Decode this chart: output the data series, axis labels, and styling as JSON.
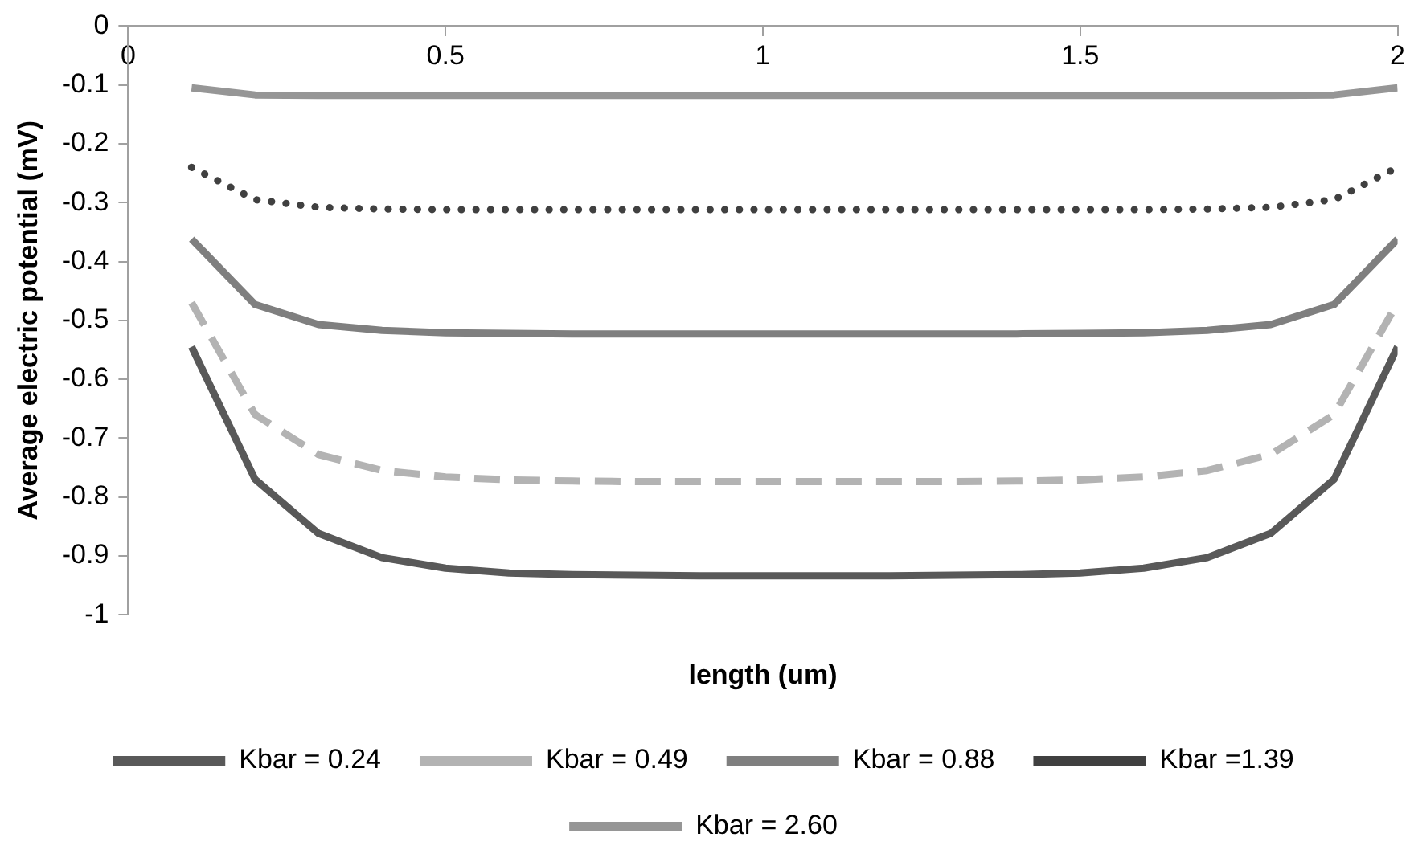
{
  "chart_data": {
    "type": "line",
    "xlabel": "length (um)",
    "ylabel": "Average electric potential (mV)",
    "x": [
      0.1,
      0.2,
      0.3,
      0.4,
      0.5,
      0.6,
      0.7,
      0.8,
      0.9,
      1.0,
      1.1,
      1.2,
      1.3,
      1.4,
      1.5,
      1.6,
      1.7,
      1.8,
      1.9,
      2.0
    ],
    "xlim": [
      0,
      2
    ],
    "xticks": [
      0,
      0.5,
      1,
      1.5,
      2
    ],
    "ylim": [
      -1,
      0
    ],
    "yticks": [
      -1,
      -0.9,
      -0.8,
      -0.7,
      -0.6,
      -0.5,
      -0.4,
      -0.3,
      -0.2,
      -0.1,
      0
    ],
    "grid": false,
    "legend": "bottom",
    "marker": "none",
    "series": [
      {
        "name": "Kbar = 0.24",
        "color": "#595959",
        "line_style": "solid",
        "values": [
          -0.545,
          -0.77,
          -0.862,
          -0.903,
          -0.921,
          -0.929,
          -0.932,
          -0.933,
          -0.934,
          -0.934,
          -0.934,
          -0.934,
          -0.933,
          -0.932,
          -0.929,
          -0.921,
          -0.903,
          -0.862,
          -0.77,
          -0.545
        ]
      },
      {
        "name": "Kbar = 0.49",
        "color": "#b3b3b3",
        "line_style": "dashed",
        "values": [
          -0.47,
          -0.66,
          -0.728,
          -0.755,
          -0.766,
          -0.771,
          -0.773,
          -0.774,
          -0.774,
          -0.774,
          -0.774,
          -0.774,
          -0.774,
          -0.773,
          -0.771,
          -0.766,
          -0.755,
          -0.728,
          -0.66,
          -0.47
        ]
      },
      {
        "name": "Kbar = 0.88",
        "color": "#7f7f7f",
        "line_style": "solid",
        "values": [
          -0.362,
          -0.473,
          -0.507,
          -0.517,
          -0.521,
          -0.522,
          -0.523,
          -0.523,
          -0.523,
          -0.523,
          -0.523,
          -0.523,
          -0.523,
          -0.523,
          -0.522,
          -0.521,
          -0.517,
          -0.507,
          -0.473,
          -0.362
        ]
      },
      {
        "name": "Kbar =1.39",
        "color": "#404040",
        "line_style": "dotted",
        "values": [
          -0.24,
          -0.295,
          -0.308,
          -0.311,
          -0.312,
          -0.312,
          -0.312,
          -0.312,
          -0.312,
          -0.312,
          -0.312,
          -0.312,
          -0.312,
          -0.312,
          -0.312,
          -0.312,
          -0.311,
          -0.308,
          -0.295,
          -0.24
        ]
      },
      {
        "name": "Kbar = 2.60",
        "color": "#969696",
        "line_style": "solid",
        "values": [
          -0.105,
          -0.117,
          -0.118,
          -0.118,
          -0.118,
          -0.118,
          -0.118,
          -0.118,
          -0.118,
          -0.118,
          -0.118,
          -0.118,
          -0.118,
          -0.118,
          -0.118,
          -0.118,
          -0.118,
          -0.118,
          -0.117,
          -0.105
        ]
      }
    ]
  }
}
